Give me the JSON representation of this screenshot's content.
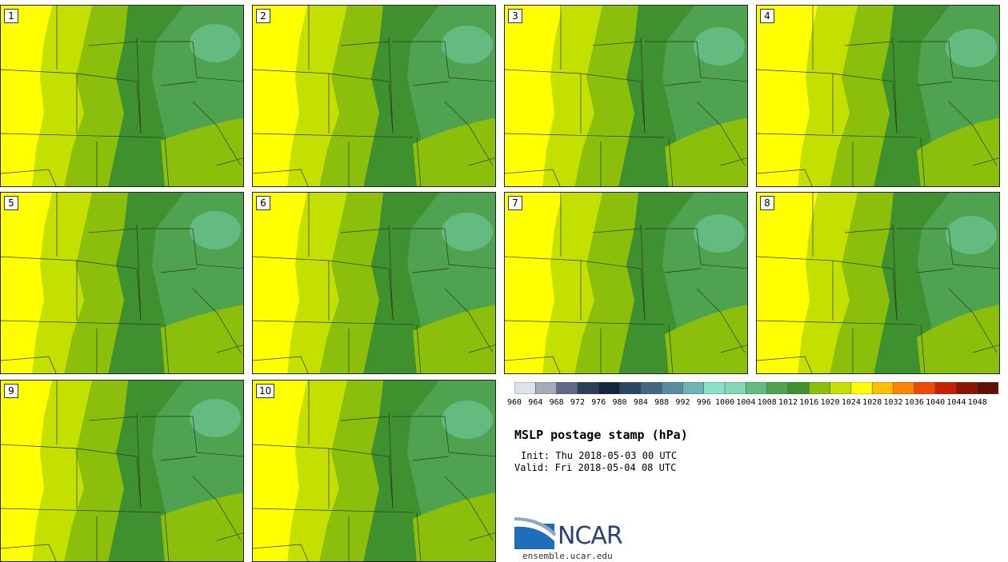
{
  "panels": [
    {
      "label": "1"
    },
    {
      "label": "2"
    },
    {
      "label": "3"
    },
    {
      "label": "4"
    },
    {
      "label": "5"
    },
    {
      "label": "6"
    },
    {
      "label": "7"
    },
    {
      "label": "8"
    },
    {
      "label": "9"
    },
    {
      "label": "10"
    }
  ],
  "colorbar": {
    "colors": [
      "#dce3ea",
      "#a6a9b8",
      "#5f6a85",
      "#2c3e5a",
      "#16253b",
      "#2b4660",
      "#41687f",
      "#5a8b9e",
      "#6db5b4",
      "#87e0c8",
      "#82d8b4",
      "#63bb80",
      "#4fa24f",
      "#3f902e",
      "#8cbf0c",
      "#c3e000",
      "#ffff00",
      "#ffbe00",
      "#ff8400",
      "#f04800",
      "#c82000",
      "#8c1400",
      "#601208"
    ],
    "labels": [
      "960",
      "964",
      "968",
      "972",
      "976",
      "980",
      "984",
      "988",
      "992",
      "996",
      "1000",
      "1004",
      "1008",
      "1012",
      "1016",
      "1020",
      "1024",
      "1028",
      "1032",
      "1036",
      "1040",
      "1044",
      "1048"
    ]
  },
  "title": "MSLP postage stamp (hPa)",
  "init": "Init: Thu 2018-05-03 00 UTC",
  "valid": "Valid: Fri 2018-05-04 08 UTC",
  "logo": {
    "text": "NCAR",
    "site": "ensemble.ucar.edu"
  }
}
